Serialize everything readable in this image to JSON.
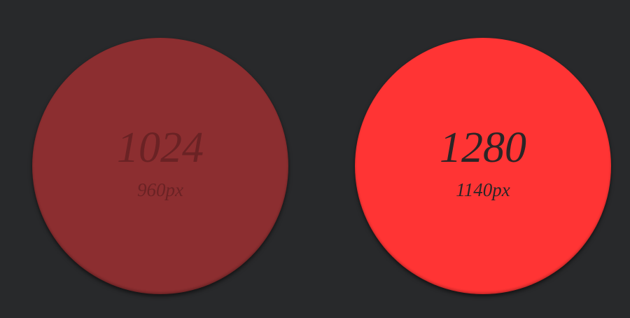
{
  "options": [
    {
      "label": "1024",
      "sub": "960px"
    },
    {
      "label": "1280",
      "sub": "1140px"
    }
  ]
}
